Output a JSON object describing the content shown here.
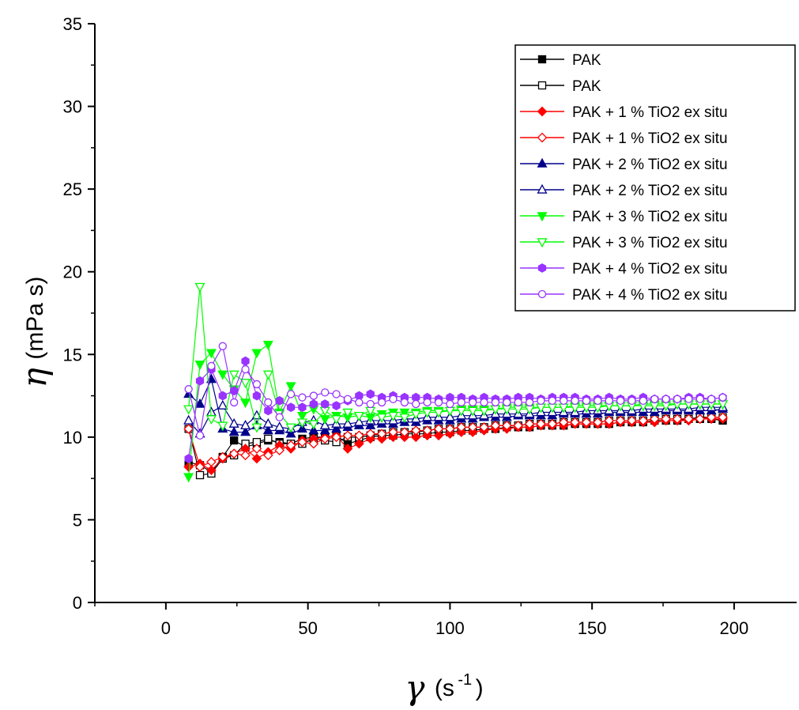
{
  "chart_data": {
    "type": "scatter",
    "xlabel_symbol": "γ",
    "xlabel_unit": "(s",
    "xlabel_exp": "-1",
    "xlabel_close": ")",
    "ylabel_symbol": "η",
    "ylabel_unit": "(mPa s)",
    "xlim": [
      -25,
      222
    ],
    "ylim": [
      0,
      35
    ],
    "xticks": [
      0,
      50,
      100,
      150,
      200
    ],
    "yticks": [
      0,
      5,
      10,
      15,
      20,
      25,
      30,
      35
    ],
    "legend_position": "top-right",
    "series": [
      {
        "name": "PAK",
        "color": "#000000",
        "marker": "square",
        "filled": true,
        "x": [
          8,
          12,
          16,
          20,
          24,
          28,
          32,
          36,
          40,
          44,
          48,
          52,
          56,
          60,
          64,
          68,
          72,
          76,
          80,
          84,
          88,
          92,
          96,
          100,
          104,
          108,
          112,
          116,
          120,
          124,
          128,
          132,
          136,
          140,
          144,
          148,
          152,
          156,
          160,
          164,
          168,
          172,
          176,
          180,
          184,
          188,
          192,
          196
        ],
        "y": [
          8.5,
          8.3,
          7.9,
          8.8,
          9.8,
          9.4,
          9.6,
          9.8,
          9.7,
          9.6,
          9.9,
          10.0,
          10.0,
          10.1,
          9.6,
          9.8,
          10.0,
          10.1,
          10.1,
          10.2,
          10.2,
          10.2,
          10.3,
          10.3,
          10.4,
          10.4,
          10.5,
          10.5,
          10.6,
          10.6,
          10.6,
          10.7,
          10.7,
          10.7,
          10.8,
          10.8,
          10.8,
          10.8,
          10.9,
          10.9,
          10.9,
          11.0,
          11.0,
          11.0,
          11.1,
          11.1,
          11.1,
          11.0
        ]
      },
      {
        "name": "PAK",
        "color": "#000000",
        "marker": "square",
        "filled": false,
        "x": [
          8,
          12,
          16,
          20,
          24,
          28,
          32,
          36,
          40,
          44,
          48,
          52,
          56,
          60,
          64,
          68,
          72,
          76,
          80,
          84,
          88,
          92,
          96,
          100,
          104,
          108,
          112,
          116,
          120,
          124,
          128,
          132,
          136,
          140,
          144,
          148,
          152,
          156,
          160,
          164,
          168,
          172,
          176,
          180,
          184,
          188,
          192,
          196
        ],
        "y": [
          10.5,
          7.7,
          7.8,
          8.7,
          8.9,
          9.6,
          9.7,
          9.9,
          9.6,
          9.6,
          9.6,
          9.9,
          9.8,
          9.7,
          10.0,
          10.0,
          10.1,
          10.2,
          10.3,
          10.3,
          10.3,
          10.4,
          10.5,
          10.5,
          10.6,
          10.6,
          10.6,
          10.7,
          10.7,
          10.7,
          10.8,
          10.8,
          10.8,
          10.9,
          10.9,
          10.9,
          10.9,
          11.0,
          11.0,
          11.0,
          11.0,
          11.1,
          11.1,
          11.1,
          11.1,
          11.2,
          11.2,
          11.2
        ]
      },
      {
        "name": "PAK + 1 % TiO2 ex situ",
        "color": "#ff0000",
        "marker": "diamond",
        "filled": true,
        "x": [
          8,
          12,
          16,
          20,
          24,
          28,
          32,
          36,
          40,
          44,
          48,
          52,
          56,
          60,
          64,
          68,
          72,
          76,
          80,
          84,
          88,
          92,
          96,
          100,
          104,
          108,
          112,
          116,
          120,
          124,
          128,
          132,
          136,
          140,
          144,
          148,
          152,
          156,
          160,
          164,
          168,
          172,
          176,
          180,
          184,
          188,
          192,
          196
        ],
        "y": [
          8.2,
          8.4,
          8.0,
          8.7,
          9.0,
          9.3,
          8.7,
          9.1,
          9.5,
          9.3,
          9.8,
          9.9,
          10.0,
          10.1,
          9.3,
          9.6,
          9.9,
          9.9,
          10.0,
          10.0,
          10.0,
          10.1,
          10.1,
          10.2,
          10.3,
          10.3,
          10.4,
          10.5,
          10.5,
          10.6,
          10.6,
          10.7,
          10.7,
          10.7,
          10.8,
          10.8,
          10.8,
          10.8,
          10.9,
          10.9,
          10.9,
          10.9,
          11.0,
          11.0,
          11.0,
          11.1,
          11.1,
          11.1
        ]
      },
      {
        "name": "PAK + 1 % TiO2 ex situ",
        "color": "#ff0000",
        "marker": "diamond",
        "filled": false,
        "x": [
          8,
          12,
          16,
          20,
          24,
          28,
          32,
          36,
          40,
          44,
          48,
          52,
          56,
          60,
          64,
          68,
          72,
          76,
          80,
          84,
          88,
          92,
          96,
          100,
          104,
          108,
          112,
          116,
          120,
          124,
          128,
          132,
          136,
          140,
          144,
          148,
          152,
          156,
          160,
          164,
          168,
          172,
          176,
          180,
          184,
          188,
          192,
          196
        ],
        "y": [
          10.5,
          8.2,
          8.5,
          8.8,
          9.0,
          8.9,
          9.3,
          8.9,
          9.2,
          9.5,
          9.7,
          9.6,
          9.9,
          10.0,
          10.1,
          10.1,
          10.2,
          10.2,
          10.3,
          10.3,
          10.4,
          10.4,
          10.5,
          10.5,
          10.6,
          10.6,
          10.6,
          10.7,
          10.7,
          10.7,
          10.8,
          10.8,
          10.8,
          10.9,
          10.9,
          10.9,
          10.9,
          11.0,
          11.0,
          11.0,
          11.0,
          11.1,
          11.1,
          11.1,
          11.1,
          11.1,
          11.2,
          11.2
        ]
      },
      {
        "name": "PAK + 2 % TiO2 ex situ",
        "color": "#00008b",
        "marker": "triangle-up",
        "filled": true,
        "x": [
          8,
          12,
          16,
          20,
          24,
          28,
          32,
          36,
          40,
          44,
          48,
          52,
          56,
          60,
          64,
          68,
          72,
          76,
          80,
          84,
          88,
          92,
          96,
          100,
          104,
          108,
          112,
          116,
          120,
          124,
          128,
          132,
          136,
          140,
          144,
          148,
          152,
          156,
          160,
          164,
          168,
          172,
          176,
          180,
          184,
          188,
          192,
          196
        ],
        "y": [
          12.6,
          12.0,
          13.5,
          10.5,
          10.3,
          10.3,
          10.7,
          10.4,
          10.4,
          10.2,
          10.5,
          10.4,
          10.4,
          10.5,
          10.6,
          10.7,
          10.7,
          10.8,
          10.8,
          10.9,
          10.9,
          11.0,
          11.0,
          11.0,
          11.1,
          11.1,
          11.2,
          11.2,
          11.2,
          11.3,
          11.3,
          11.3,
          11.3,
          11.4,
          11.4,
          11.4,
          11.4,
          11.5,
          11.5,
          11.5,
          11.5,
          11.5,
          11.6,
          11.6,
          11.6,
          11.6,
          11.6,
          11.7
        ]
      },
      {
        "name": "PAK + 2 % TiO2 ex situ",
        "color": "#00008b",
        "marker": "triangle-up",
        "filled": false,
        "x": [
          8,
          12,
          16,
          20,
          24,
          28,
          32,
          36,
          40,
          44,
          48,
          52,
          56,
          60,
          64,
          68,
          72,
          76,
          80,
          84,
          88,
          92,
          96,
          100,
          104,
          108,
          112,
          116,
          120,
          124,
          128,
          132,
          136,
          140,
          144,
          148,
          152,
          156,
          160,
          164,
          168,
          172,
          176,
          180,
          184,
          188,
          192,
          196
        ],
        "y": [
          11.0,
          10.2,
          11.5,
          11.9,
          10.8,
          10.7,
          11.3,
          10.8,
          10.6,
          10.5,
          10.9,
          11.0,
          10.7,
          10.8,
          10.8,
          10.9,
          11.0,
          11.0,
          11.0,
          11.1,
          11.1,
          11.2,
          11.2,
          11.2,
          11.3,
          11.3,
          11.3,
          11.4,
          11.4,
          11.4,
          11.4,
          11.5,
          11.5,
          11.5,
          11.5,
          11.6,
          11.6,
          11.6,
          11.6,
          11.6,
          11.7,
          11.7,
          11.7,
          11.7,
          11.7,
          11.8,
          11.8,
          11.8
        ]
      },
      {
        "name": "PAK + 3 % TiO2 ex situ",
        "color": "#00ff00",
        "marker": "triangle-down",
        "filled": true,
        "x": [
          8,
          12,
          16,
          20,
          24,
          28,
          32,
          36,
          40,
          44,
          48,
          52,
          56,
          60,
          64,
          68,
          72,
          76,
          80,
          84,
          88,
          92,
          96,
          100,
          104,
          108,
          112,
          116,
          120,
          124,
          128,
          132,
          136,
          140,
          144,
          148,
          152,
          156,
          160,
          164,
          168,
          172,
          176,
          180,
          184,
          188,
          192,
          196
        ],
        "y": [
          7.6,
          14.4,
          15.1,
          13.8,
          12.9,
          12.1,
          15.1,
          15.6,
          11.5,
          13.1,
          11.3,
          11.7,
          11.1,
          11.3,
          11.2,
          11.3,
          11.2,
          11.4,
          11.5,
          11.5,
          11.5,
          11.6,
          11.6,
          11.6,
          11.7,
          11.7,
          11.7,
          11.7,
          11.8,
          11.8,
          11.8,
          11.8,
          11.8,
          11.8,
          11.9,
          11.9,
          11.9,
          11.9,
          11.9,
          11.9,
          12.0,
          12.0,
          12.0,
          12.0,
          12.0,
          12.0,
          12.0,
          12.0
        ]
      },
      {
        "name": "PAK + 3 % TiO2 ex situ",
        "color": "#00ff00",
        "marker": "triangle-down",
        "filled": false,
        "x": [
          8,
          12,
          16,
          20,
          24,
          28,
          32,
          36,
          40,
          44,
          48,
          52,
          56,
          60,
          64,
          68,
          72,
          76,
          80,
          84,
          88,
          92,
          96,
          100,
          104,
          108,
          112,
          116,
          120,
          124,
          128,
          132,
          136,
          140,
          144,
          148,
          152,
          156,
          160,
          164,
          168,
          172,
          176,
          180,
          184,
          188,
          192,
          196
        ],
        "y": [
          11.7,
          19.1,
          11.1,
          10.7,
          13.8,
          13.3,
          10.6,
          13.8,
          11.4,
          10.6,
          10.9,
          10.8,
          11.6,
          11.1,
          11.5,
          11.3,
          11.6,
          11.2,
          11.3,
          11.2,
          11.4,
          11.5,
          11.5,
          11.6,
          11.6,
          11.6,
          11.6,
          11.7,
          11.7,
          11.7,
          11.7,
          11.8,
          11.8,
          11.8,
          11.8,
          11.8,
          11.8,
          11.9,
          11.9,
          11.9,
          11.9,
          11.9,
          11.9,
          12.0,
          12.0,
          12.0,
          12.0,
          12.0
        ]
      },
      {
        "name": "PAK + 4 % TiO2 ex situ",
        "color": "#9933ff",
        "marker": "hexagon",
        "filled": true,
        "x": [
          8,
          12,
          16,
          20,
          24,
          28,
          32,
          36,
          40,
          44,
          48,
          52,
          56,
          60,
          64,
          68,
          72,
          76,
          80,
          84,
          88,
          92,
          96,
          100,
          104,
          108,
          112,
          116,
          120,
          124,
          128,
          132,
          136,
          140,
          144,
          148,
          152,
          156,
          160,
          164,
          168,
          172,
          176,
          180,
          184,
          188,
          192,
          196
        ],
        "y": [
          8.7,
          13.4,
          14.1,
          12.5,
          12.8,
          14.6,
          12.5,
          11.6,
          12.2,
          11.8,
          11.8,
          12.0,
          12.0,
          11.9,
          12.2,
          12.5,
          12.6,
          12.4,
          12.5,
          12.4,
          12.4,
          12.4,
          12.3,
          12.4,
          12.4,
          12.3,
          12.4,
          12.3,
          12.3,
          12.4,
          12.4,
          12.3,
          12.4,
          12.4,
          12.4,
          12.3,
          12.3,
          12.4,
          12.3,
          12.3,
          12.4,
          12.3,
          12.3,
          12.3,
          12.4,
          12.4,
          12.3,
          12.4
        ]
      },
      {
        "name": "PAK + 4 % TiO2 ex situ",
        "color": "#9933ff",
        "marker": "circle",
        "filled": false,
        "x": [
          8,
          12,
          16,
          20,
          24,
          28,
          32,
          36,
          40,
          44,
          48,
          52,
          56,
          60,
          64,
          68,
          72,
          76,
          80,
          84,
          88,
          92,
          96,
          100,
          104,
          108,
          112,
          116,
          120,
          124,
          128,
          132,
          136,
          140,
          144,
          148,
          152,
          156,
          160,
          164,
          168,
          172,
          176,
          180,
          184,
          188,
          192,
          196
        ],
        "y": [
          12.9,
          10.1,
          14.3,
          15.5,
          12.1,
          14.1,
          13.2,
          12.1,
          11.2,
          12.6,
          12.4,
          12.5,
          12.7,
          12.6,
          12.3,
          12.1,
          12.0,
          12.1,
          12.3,
          12.1,
          12.0,
          12.1,
          12.1,
          12.0,
          12.1,
          12.1,
          12.1,
          12.1,
          12.1,
          12.1,
          12.1,
          12.2,
          12.2,
          12.2,
          12.2,
          12.2,
          12.2,
          12.2,
          12.2,
          12.2,
          12.2,
          12.3,
          12.3,
          12.3,
          12.3,
          12.3,
          12.3,
          12.4
        ]
      }
    ]
  }
}
